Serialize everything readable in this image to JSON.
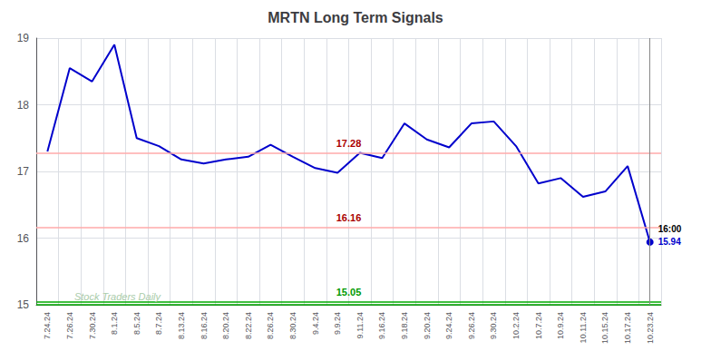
{
  "chart_data": {
    "type": "line",
    "title": "MRTN Long Term Signals",
    "categories": [
      "7.24.24",
      "7.26.24",
      "7.30.24",
      "8.1.24",
      "8.5.24",
      "8.7.24",
      "8.13.24",
      "8.16.24",
      "8.20.24",
      "8.22.24",
      "8.26.24",
      "8.30.24",
      "9.4.24",
      "9.9.24",
      "9.11.24",
      "9.16.24",
      "9.18.24",
      "9.20.24",
      "9.24.24",
      "9.26.24",
      "9.30.24",
      "10.2.24",
      "10.7.24",
      "10.9.24",
      "10.11.24",
      "10.15.24",
      "10.17.24",
      "10.23.24"
    ],
    "values": [
      17.3,
      18.55,
      18.35,
      18.9,
      17.5,
      17.38,
      17.18,
      17.12,
      17.18,
      17.22,
      17.4,
      17.22,
      17.05,
      16.98,
      17.28,
      17.2,
      17.72,
      17.48,
      17.36,
      17.72,
      17.75,
      17.38,
      16.82,
      16.9,
      16.62,
      16.7,
      17.08,
      15.94
    ],
    "color": "#0000cc",
    "ylim": [
      15,
      19
    ],
    "yticks": [
      15,
      16,
      17,
      18,
      19
    ],
    "grid": true,
    "hlines": [
      {
        "y": 17.28,
        "color": "#ffaaaa",
        "label": "17.28",
        "label_color": "#aa0000"
      },
      {
        "y": 16.16,
        "color": "#ffaaaa",
        "label": "16.16",
        "label_color": "#aa0000"
      },
      {
        "y": 15.05,
        "color": "#00aa00",
        "label": "15.05",
        "label_color": "#009900"
      },
      {
        "y": 15.0,
        "color": "#00aa00"
      }
    ],
    "vline": {
      "x": "10.23.24",
      "color": "#888888"
    },
    "annotations": [
      {
        "text": "Stock Traders Daily",
        "color": "#aaccaa"
      },
      {
        "text": "16:00",
        "color": "#000000"
      },
      {
        "text": "15.94",
        "color": "#0000cc",
        "y": 15.94
      }
    ]
  }
}
